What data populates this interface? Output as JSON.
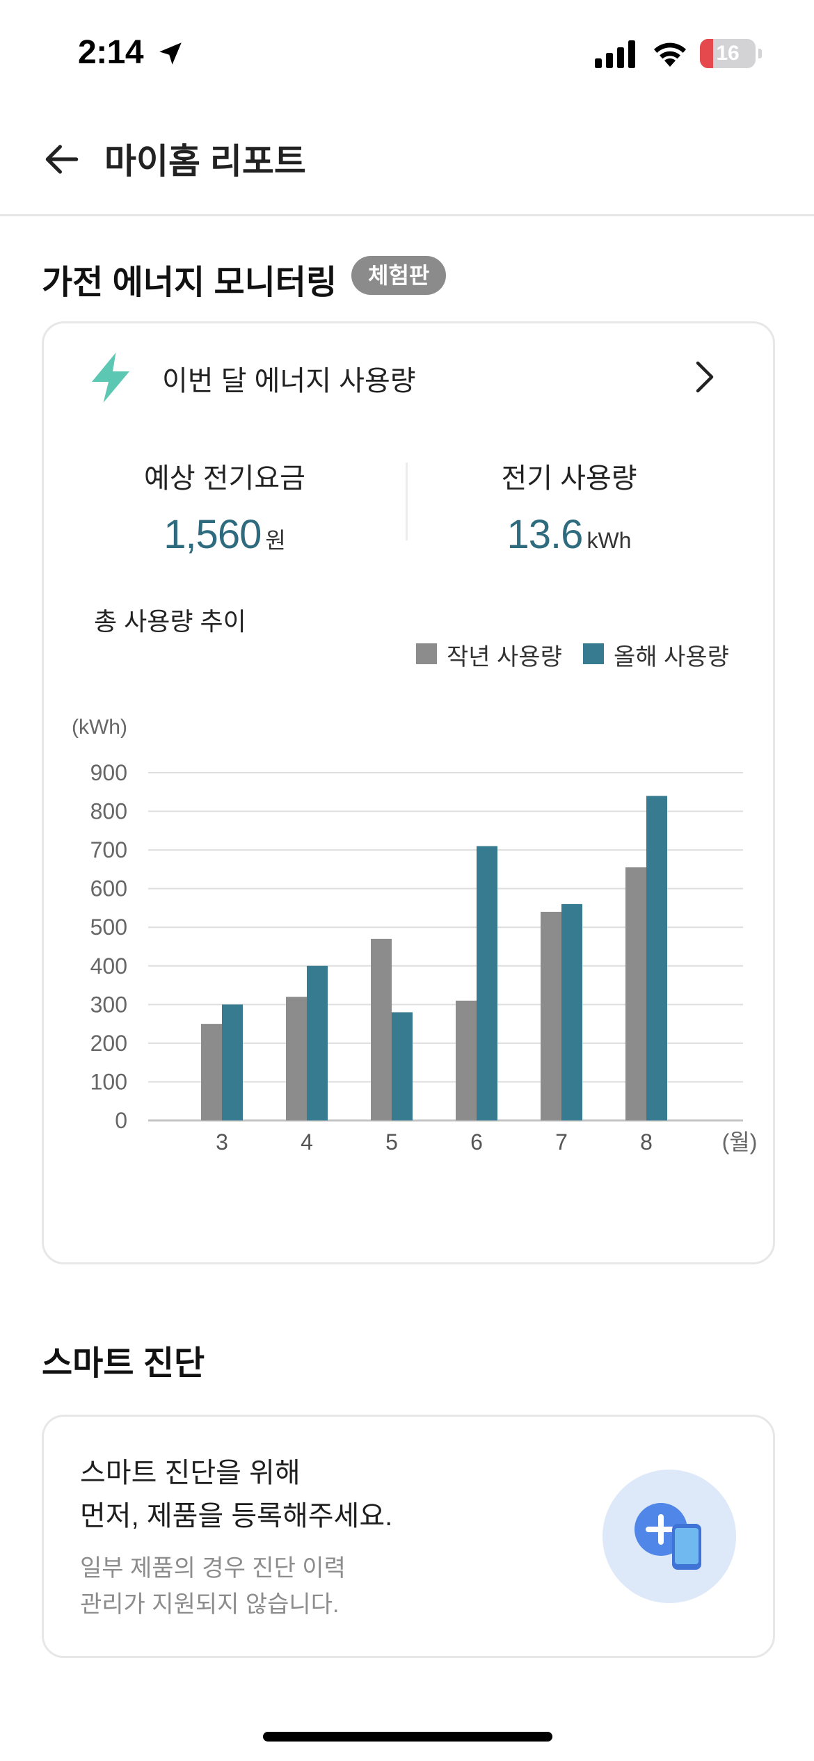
{
  "status_bar": {
    "time": "2:14",
    "battery_level": "16",
    "battery_fraction": 0.16,
    "battery_color": "#e5484d"
  },
  "header": {
    "title": "마이홈 리포트"
  },
  "energy_section": {
    "title": "가전 에너지 모니터링",
    "badge": "체험판",
    "card": {
      "title": "이번 달 에너지 사용량",
      "accent_icon": "lightning-bolt-icon",
      "accent_color": "#5cc7b2",
      "metrics": [
        {
          "label": "예상 전기요금",
          "value": "1,560",
          "unit": "원"
        },
        {
          "label": "전기 사용량",
          "value": "13.6",
          "unit": "kWh"
        }
      ],
      "trend_title": "총 사용량 추이"
    }
  },
  "chart_data": {
    "type": "bar",
    "categories": [
      "3",
      "4",
      "5",
      "6",
      "7",
      "8"
    ],
    "series": [
      {
        "name": "작년 사용량",
        "color": "#8c8c8c",
        "values": [
          250,
          320,
          470,
          310,
          540,
          655
        ]
      },
      {
        "name": "올해 사용량",
        "color": "#367b8f",
        "values": [
          300,
          400,
          280,
          710,
          560,
          840
        ]
      }
    ],
    "ylabel": "(kWh)",
    "xlabel": "(월)",
    "ylim": [
      0,
      900
    ],
    "yticks": [
      0,
      100,
      200,
      300,
      400,
      500,
      600,
      700,
      800,
      900
    ],
    "grid": true,
    "legend_position": "top-right"
  },
  "smart_section": {
    "title": "스마트 진단",
    "line1": "스마트 진단을 위해",
    "line2": "먼저, 제품을 등록해주세요.",
    "sub1": "일부 제품의 경우 진단 이력",
    "sub2": "관리가 지원되지 않습니다.",
    "icon": "add-device-icon"
  }
}
